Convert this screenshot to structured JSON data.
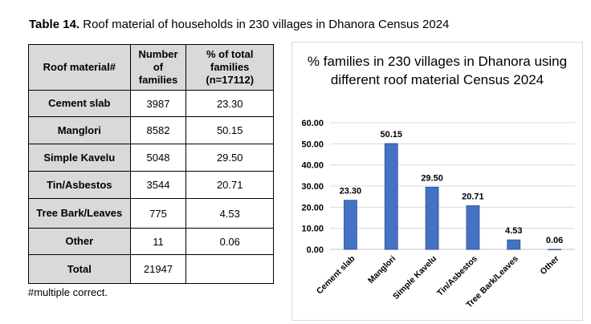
{
  "caption": {
    "label": "Table 14.",
    "text": " Roof material of households in 230 villages in Dhanora Census 2024"
  },
  "table": {
    "headers": [
      "Roof material#",
      "Number of families",
      "% of total families (n=17112)"
    ],
    "rows": [
      {
        "material": "Cement slab",
        "count": "3987",
        "pct": "23.30"
      },
      {
        "material": "Manglori",
        "count": "8582",
        "pct": "50.15"
      },
      {
        "material": "Simple Kavelu",
        "count": "5048",
        "pct": "29.50"
      },
      {
        "material": "Tin/Asbestos",
        "count": "3544",
        "pct": "20.71"
      },
      {
        "material": "Tree Bark/Leaves",
        "count": "775",
        "pct": "4.53"
      },
      {
        "material": "Other",
        "count": "11",
        "pct": "0.06"
      },
      {
        "material": "Total",
        "count": "21947",
        "pct": ""
      }
    ]
  },
  "footnote": "#multiple correct.",
  "chart_data": {
    "type": "bar",
    "title": "% families in 230 villages in Dhanora using different roof material Census 2024",
    "categories": [
      "Cement slab",
      "Manglori",
      "Simple Kavelu",
      "Tin/Asbestos",
      "Tree Bark/Leaves",
      "Other"
    ],
    "values": [
      23.3,
      50.15,
      29.5,
      20.71,
      4.53,
      0.06
    ],
    "value_labels": [
      "23.30",
      "50.15",
      "29.50",
      "20.71",
      "4.53",
      "0.06"
    ],
    "ylim": [
      0,
      60
    ],
    "yticks": [
      "0.00",
      "10.00",
      "20.00",
      "30.00",
      "40.00",
      "50.00",
      "60.00"
    ],
    "grid": true,
    "bar_color": "#4472c4",
    "xlabel": "",
    "ylabel": ""
  }
}
